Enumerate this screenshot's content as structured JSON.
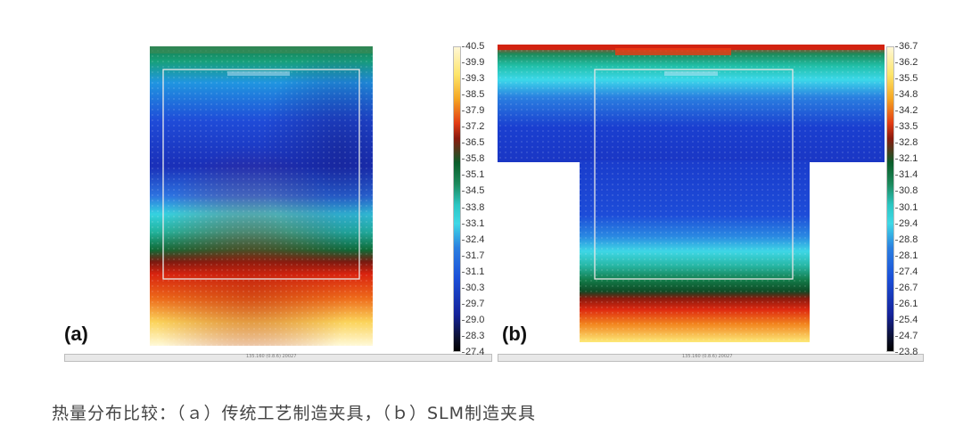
{
  "panels": [
    {
      "label": "(a)",
      "scale_text": "135.160 (0.8.6) 20027",
      "colorbar_ticks": [
        "40.5",
        "39.9",
        "39.3",
        "38.5",
        "37.9",
        "37.2",
        "36.5",
        "35.8",
        "35.1",
        "34.5",
        "33.8",
        "33.1",
        "32.4",
        "31.7",
        "31.1",
        "30.3",
        "29.7",
        "29.0",
        "28.3",
        "27.4"
      ]
    },
    {
      "label": "(b)",
      "scale_text": "135.160 (0.8.6) 20027",
      "colorbar_ticks": [
        "36.7",
        "36.2",
        "35.5",
        "34.8",
        "34.2",
        "33.5",
        "32.8",
        "32.1",
        "31.4",
        "30.8",
        "30.1",
        "29.4",
        "28.8",
        "28.1",
        "27.4",
        "26.7",
        "26.1",
        "25.4",
        "24.7",
        "23.8"
      ]
    }
  ],
  "caption": "热量分布比较：（ａ）传统工艺制造夹具，（ｂ）SLM制造夹具",
  "colors": {
    "hot": "#e23b14",
    "cold": "#1b3fd0",
    "mid": "#2cc7c4",
    "frame": "#e8e8e8"
  }
}
